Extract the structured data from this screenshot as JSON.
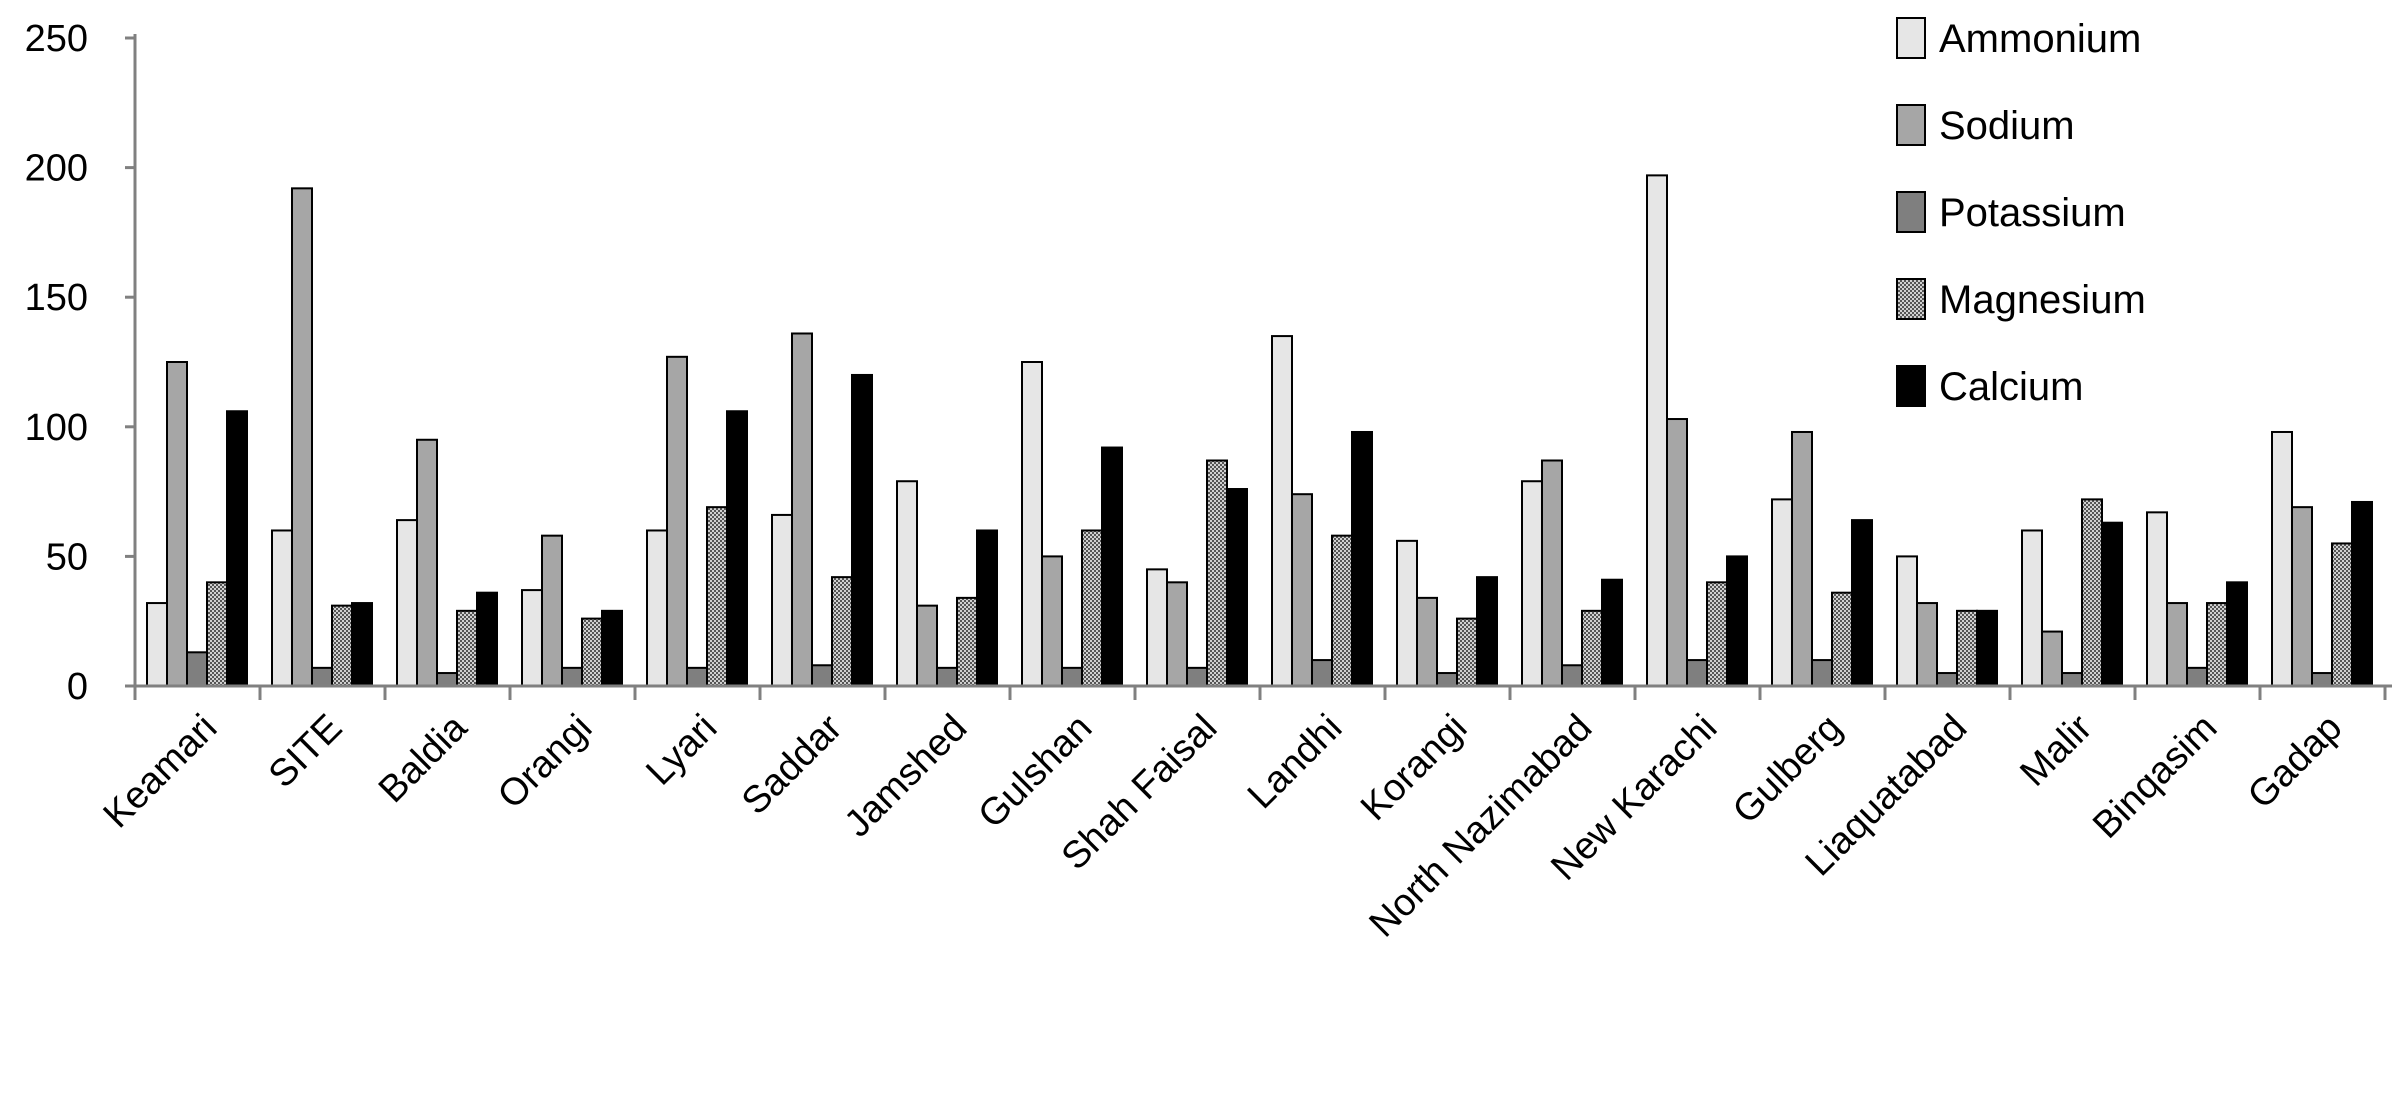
{
  "chart_data": {
    "type": "bar",
    "title": "",
    "xlabel": "",
    "ylabel": "",
    "ylim": [
      0,
      250
    ],
    "yticks": [
      0,
      50,
      100,
      150,
      200,
      250
    ],
    "grid": false,
    "legend_position": "top-right",
    "categories": [
      "Keamari",
      "SITE",
      "Baldia",
      "Orangi",
      "Lyari",
      "Saddar",
      "Jamshed",
      "Gulshan",
      "Shah Faisal",
      "Landhi",
      "Korangi",
      "North Nazimabad",
      "New Karachi",
      "Gulberg",
      "Liaquatabad",
      "Malir",
      "Binqasim",
      "Gadap"
    ],
    "series": [
      {
        "name": "Ammonium",
        "color": "#e6e6e6",
        "pattern": "solid",
        "values": [
          32,
          60,
          64,
          37,
          60,
          66,
          79,
          125,
          45,
          135,
          56,
          79,
          197,
          72,
          50,
          60,
          67,
          98
        ]
      },
      {
        "name": "Sodium",
        "color": "#a6a6a6",
        "pattern": "solid",
        "values": [
          125,
          192,
          95,
          58,
          127,
          136,
          31,
          50,
          40,
          74,
          34,
          87,
          103,
          98,
          32,
          21,
          32,
          69
        ]
      },
      {
        "name": "Potassium",
        "color": "#7f7f7f",
        "pattern": "solid",
        "values": [
          13,
          7,
          5,
          7,
          7,
          8,
          7,
          7,
          7,
          10,
          5,
          8,
          10,
          10,
          5,
          5,
          7,
          5
        ]
      },
      {
        "name": "Magnesium",
        "color": "#8c8c8c",
        "pattern": "dotted",
        "values": [
          40,
          31,
          29,
          26,
          69,
          42,
          34,
          60,
          87,
          58,
          26,
          29,
          40,
          36,
          29,
          72,
          32,
          55
        ]
      },
      {
        "name": "Calcium",
        "color": "#000000",
        "pattern": "solid",
        "values": [
          106,
          32,
          36,
          29,
          106,
          120,
          60,
          92,
          76,
          98,
          42,
          41,
          50,
          64,
          29,
          63,
          40,
          71
        ]
      }
    ]
  }
}
